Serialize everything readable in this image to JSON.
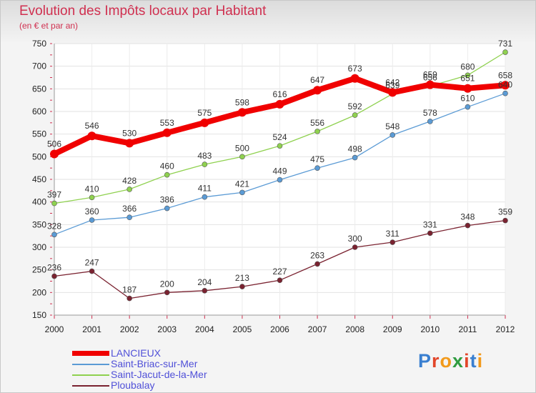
{
  "header": {
    "title": "Evolution des Impôts locaux par Habitant",
    "subtitle": "(en € et par an)"
  },
  "brand": {
    "logo_text": "Proxiti",
    "logo_colors": [
      "#3a7fd0",
      "#e2462a",
      "#f29a1b",
      "#2f9c40",
      "#e2462a",
      "#3a7fd0",
      "#f29a1b"
    ]
  },
  "chart_data": {
    "type": "line",
    "x": [
      "2000",
      "2001",
      "2002",
      "2003",
      "2004",
      "2005",
      "2006",
      "2007",
      "2008",
      "2009",
      "2010",
      "2011",
      "2012"
    ],
    "ylim": [
      150,
      750
    ],
    "yticks": [
      150,
      200,
      250,
      300,
      350,
      400,
      450,
      500,
      550,
      600,
      650,
      700,
      750
    ],
    "grid": true,
    "legend_position": "bottom-left",
    "series": [
      {
        "name": "LANCIEUX",
        "color": "#f00000",
        "emphasis": true,
        "values": [
          506,
          546,
          530,
          553,
          575,
          598,
          616,
          647,
          673,
          642,
          659,
          651,
          658
        ]
      },
      {
        "name": "Saint-Briac-sur-Mer",
        "color": "#5b9bd5",
        "emphasis": false,
        "values": [
          328,
          360,
          366,
          386,
          411,
          421,
          449,
          475,
          498,
          548,
          578,
          610,
          640
        ]
      },
      {
        "name": "Saint-Jacut-de-la-Mer",
        "color": "#8fd14f",
        "emphasis": false,
        "values": [
          397,
          410,
          428,
          460,
          483,
          500,
          524,
          556,
          592,
          639,
          656,
          680,
          731
        ]
      },
      {
        "name": "Ploubalay",
        "color": "#7a2230",
        "emphasis": false,
        "values": [
          236,
          247,
          187,
          200,
          204,
          213,
          227,
          263,
          300,
          311,
          331,
          348,
          359
        ]
      }
    ]
  }
}
